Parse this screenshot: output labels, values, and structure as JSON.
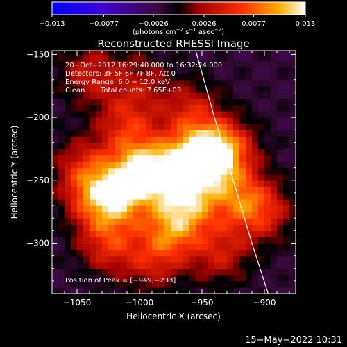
{
  "chart_data": {
    "type": "heatmap",
    "title": "Reconstructed RHESSI Image",
    "xlabel": "Heliocentric X (arcsec)",
    "ylabel": "Heliocentric Y (arcsec)",
    "xlim": [
      -1070,
      -875
    ],
    "ylim": [
      -340,
      -147
    ],
    "x_ticks": [
      -1050,
      -1000,
      -950,
      -900
    ],
    "y_ticks": [
      -150,
      -200,
      -250,
      -300
    ],
    "x_tick_labels": [
      "−1050",
      "−1000",
      "−950",
      "−900"
    ],
    "y_tick_labels": [
      "−150",
      "−200",
      "−250",
      "−300"
    ],
    "colorbar": {
      "min": -0.013,
      "max": 0.013,
      "ticks": [
        -0.013,
        -0.0077,
        -0.0026,
        0.0026,
        0.0077,
        0.013
      ],
      "tick_labels": [
        "−0.013",
        "−0.0077",
        "−0.0026",
        "0.0026",
        "0.0077",
        "0.013"
      ],
      "units_prefix": "(photons cm",
      "units_sup1": "−2",
      "units_mid1": " s",
      "units_sup2": "−1",
      "units_mid2": " asec",
      "units_sup3": "−2",
      "units_suffix": ")"
    },
    "peak": [
      -949,
      -233
    ],
    "annotations": {
      "time": "20−Oct−2012 16:29:40.000 to 16:32:24.000",
      "detectors": "Detectors: 3F 5F 6F 7F 8F, Att 0",
      "energy": "Energy Range: 6.0 − 12.0 keV",
      "method": "Clean",
      "counts": "Total counts: 7.65E+03",
      "peak_label": "Position of Peak = [−949,−233]"
    },
    "sources": [
      {
        "x": -949,
        "y": -233,
        "value": 0.013
      },
      {
        "x": -975,
        "y": -245,
        "value": 0.0085
      },
      {
        "x": -1000,
        "y": -240,
        "value": 0.0078
      },
      {
        "x": -1015,
        "y": -262,
        "value": 0.007
      },
      {
        "x": -975,
        "y": -290,
        "value": 0.006
      },
      {
        "x": -1035,
        "y": -265,
        "value": 0.0055
      },
      {
        "x": -1045,
        "y": -240,
        "value": 0.004
      },
      {
        "x": -1025,
        "y": -300,
        "value": 0.0048
      },
      {
        "x": -960,
        "y": -270,
        "value": 0.006
      },
      {
        "x": -920,
        "y": -265,
        "value": 0.0055
      },
      {
        "x": -900,
        "y": -275,
        "value": 0.0038
      },
      {
        "x": -935,
        "y": -308,
        "value": 0.0036
      },
      {
        "x": -1040,
        "y": -165,
        "value": 0.0035
      },
      {
        "x": -1000,
        "y": -170,
        "value": 0.002
      },
      {
        "x": -960,
        "y": -195,
        "value": 0.004
      },
      {
        "x": -1010,
        "y": -205,
        "value": 0.0045
      },
      {
        "x": -990,
        "y": -315,
        "value": 0.003
      },
      {
        "x": -930,
        "y": -225,
        "value": 0.006
      }
    ],
    "limb": [
      [
        -955,
        -147
      ],
      [
        -940,
        -200
      ],
      [
        -925,
        -250
      ],
      [
        -910,
        -300
      ],
      [
        -897,
        -340
      ]
    ]
  },
  "footer": {
    "timestamp": "15−May−2022 10:31"
  }
}
